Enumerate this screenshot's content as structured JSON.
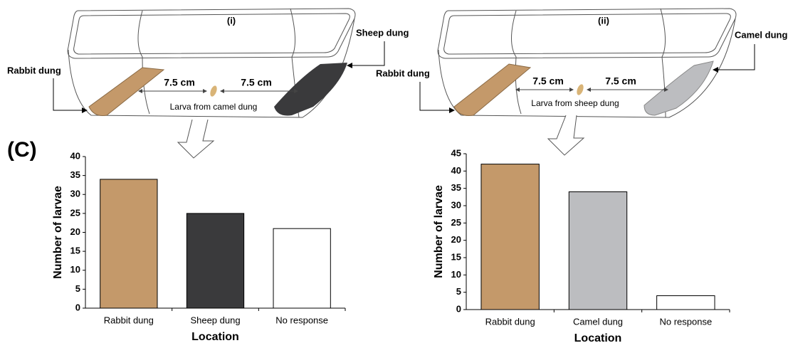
{
  "panel_label": "(C)",
  "diagrams": [
    {
      "label": "(i)",
      "left": "Rabbit dung",
      "right": "Sheep dung",
      "distance_left": "7.5 cm",
      "distance_right": "7.5 cm",
      "larva": "Larva from camel dung"
    },
    {
      "label": "(ii)",
      "left": "Rabbit dung",
      "right": "Camel dung",
      "distance_left": "7.5 cm",
      "distance_right": "7.5 cm",
      "larva": "Larva from sheep dung"
    }
  ],
  "chart_data": [
    {
      "type": "bar",
      "ylabel": "Number of larvae",
      "xlabel": "Location",
      "categories": [
        "Rabbit dung",
        "Sheep dung",
        "No response"
      ],
      "values": [
        34,
        25,
        21
      ],
      "colors": [
        "#c4996a",
        "#3a3a3c",
        "#ffffff"
      ],
      "ylim": [
        0,
        40
      ],
      "yticks": [
        0,
        5,
        10,
        15,
        20,
        25,
        30,
        35,
        40
      ]
    },
    {
      "type": "bar",
      "ylabel": "Number of larvae",
      "xlabel": "Location",
      "categories": [
        "Rabbit dung",
        "Camel dung",
        "No response"
      ],
      "values": [
        42,
        34,
        4
      ],
      "colors": [
        "#c4996a",
        "#bcbdc0",
        "#ffffff"
      ],
      "ylim": [
        0,
        45
      ],
      "yticks": [
        0,
        5,
        10,
        15,
        20,
        25,
        30,
        35,
        40,
        45
      ]
    }
  ]
}
